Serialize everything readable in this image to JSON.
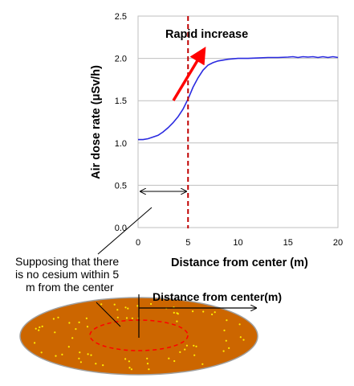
{
  "chart_data": {
    "type": "line",
    "xlabel": "Distance from center (m)",
    "ylabel": "Air dose rate (μSv/h)",
    "xlim": [
      0,
      20
    ],
    "ylim": [
      0,
      2.5
    ],
    "x_ticks": [
      "0",
      "5",
      "10",
      "15",
      "20"
    ],
    "y_ticks": [
      "0.0",
      "0.5",
      "1.0",
      "1.5",
      "2.0",
      "2.5"
    ],
    "grid": "horizontal",
    "series": [
      {
        "color": "#2b2be0",
        "x": [
          0,
          0.5,
          1,
          1.5,
          2,
          2.5,
          3,
          3.5,
          4,
          4.5,
          5,
          5.5,
          6,
          6.5,
          7,
          7.5,
          8,
          9,
          10,
          11,
          12,
          13,
          14,
          15,
          15.5,
          16,
          16.5,
          17,
          17.5,
          18,
          18.5,
          19,
          19.5,
          20
        ],
        "y": [
          1.04,
          1.04,
          1.05,
          1.07,
          1.09,
          1.13,
          1.18,
          1.24,
          1.31,
          1.4,
          1.52,
          1.66,
          1.77,
          1.86,
          1.92,
          1.95,
          1.97,
          1.99,
          2.0,
          2.0,
          2.005,
          2.01,
          2.01,
          2.015,
          2.02,
          2.01,
          2.02,
          2.015,
          2.02,
          2.01,
          2.02,
          2.01,
          2.02,
          2.01
        ]
      }
    ],
    "marker_line": {
      "x": 5,
      "color": "#c00000",
      "style": "dashed"
    },
    "annotations": {
      "rapid_increase": "Rapid increase",
      "supposing": [
        "Supposing that there",
        "is no cesium within 5",
        "m from the center"
      ],
      "distance_label": "Distance from center(m)"
    },
    "colors": {
      "arrow": "#ff0000",
      "disk_fill": "#cc6600",
      "disk_stroke": "#a0a0a0",
      "dots": "#ffee00",
      "inner_ring": "#ff0000"
    }
  }
}
